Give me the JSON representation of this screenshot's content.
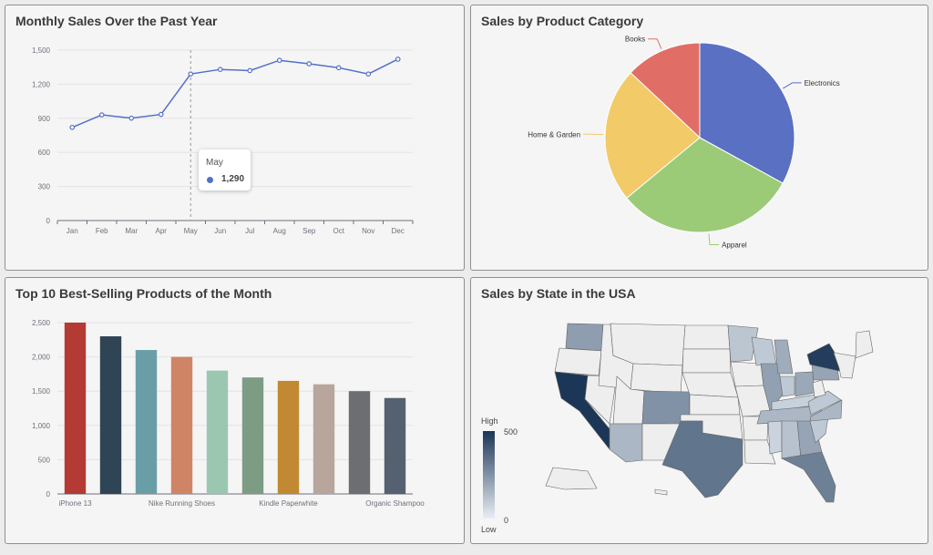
{
  "colors": {
    "line": "#5470c6",
    "map_high": "#1c3657",
    "map_low": "#e8eef4",
    "map_empty": "#eeeeee"
  },
  "line_panel": {
    "title": "Monthly Sales Over the Past Year"
  },
  "pie_panel": {
    "title": "Sales by Product Category"
  },
  "bar_panel": {
    "title": "Top 10 Best-Selling Products of the Month"
  },
  "map_panel": {
    "title": "Sales by State in the USA",
    "legend": {
      "high_label": "High",
      "low_label": "Low",
      "max": "500",
      "min": "0"
    }
  },
  "tooltip": {
    "month": "May",
    "value": "1,290"
  },
  "chart_data": [
    {
      "type": "line",
      "title": "Monthly Sales Over the Past Year",
      "categories": [
        "Jan",
        "Feb",
        "Mar",
        "Apr",
        "May",
        "Jun",
        "Jul",
        "Aug",
        "Sep",
        "Oct",
        "Nov",
        "Dec"
      ],
      "values": [
        820,
        930,
        901,
        934,
        1290,
        1330,
        1320,
        1410,
        1380,
        1345,
        1290,
        1420
      ],
      "ylim": [
        0,
        1500
      ],
      "yticks": [
        0,
        300,
        600,
        900,
        1200,
        1500
      ],
      "ytick_labels": [
        "0",
        "300",
        "600",
        "900",
        "1,200",
        "1,500"
      ]
    },
    {
      "type": "pie",
      "title": "Sales by Product Category",
      "slices": [
        {
          "name": "Electronics",
          "value": 33,
          "color": "#5a70c3"
        },
        {
          "name": "Apparel",
          "value": 31,
          "color": "#9ccb78"
        },
        {
          "name": "Home & Garden",
          "value": 23,
          "color": "#f2ca68"
        },
        {
          "name": "Books",
          "value": 13,
          "color": "#e06e67"
        }
      ]
    },
    {
      "type": "bar",
      "title": "Top 10 Best-Selling Products of the Month",
      "categories": [
        "iPhone 13",
        "",
        "",
        "Nike Running Shoes",
        "",
        "",
        "Kindle Paperwhite",
        "",
        "",
        "Organic Shampoo"
      ],
      "values": [
        2500,
        2300,
        2100,
        2000,
        1800,
        1700,
        1650,
        1600,
        1500,
        1400
      ],
      "colors": [
        "#b33b33",
        "#2f4455",
        "#6a9ea7",
        "#cf8466",
        "#9bc7b1",
        "#7c9c84",
        "#c18931",
        "#b8a59c",
        "#6d6e72",
        "#556170"
      ],
      "ylim": [
        0,
        2500
      ],
      "yticks": [
        0,
        500,
        1000,
        1500,
        2000,
        2500
      ],
      "ytick_labels": [
        "0",
        "500",
        "1,000",
        "1,500",
        "2,000",
        "2,500"
      ]
    },
    {
      "type": "map",
      "title": "Sales by State in the USA",
      "scale": {
        "min": 0,
        "max": 500
      },
      "states": [
        {
          "name": "California",
          "value": 500
        },
        {
          "name": "New York",
          "value": 480
        },
        {
          "name": "Texas",
          "value": 330
        },
        {
          "name": "Florida",
          "value": 300
        },
        {
          "name": "Colorado",
          "value": 250
        },
        {
          "name": "Washington",
          "value": 220
        },
        {
          "name": "Illinois",
          "value": 210
        },
        {
          "name": "Pennsylvania",
          "value": 200
        },
        {
          "name": "Georgia",
          "value": 200
        },
        {
          "name": "Ohio",
          "value": 190
        },
        {
          "name": "Michigan",
          "value": 180
        },
        {
          "name": "Arizona",
          "value": 150
        },
        {
          "name": "Tennessee",
          "value": 150
        },
        {
          "name": "North Carolina",
          "value": 150
        },
        {
          "name": "Alabama",
          "value": 120
        },
        {
          "name": "Minnesota",
          "value": 110
        },
        {
          "name": "Wisconsin",
          "value": 100
        },
        {
          "name": "Indiana",
          "value": 100
        },
        {
          "name": "Virginia",
          "value": 100
        },
        {
          "name": "South Carolina",
          "value": 100
        },
        {
          "name": "Kentucky",
          "value": 80
        },
        {
          "name": "Mississippi",
          "value": 70
        }
      ]
    }
  ]
}
